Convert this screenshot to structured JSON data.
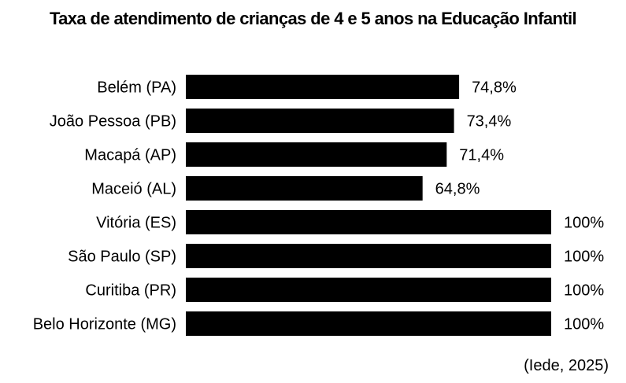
{
  "chart_data": {
    "type": "bar",
    "orientation": "horizontal",
    "title": "Taxa de atendimento de crianças de 4 e 5 anos na Educação Infantil",
    "categories": [
      "Belém (PA)",
      "João Pessoa (PB)",
      "Macapá (AP)",
      "Maceió (AL)",
      "Vitória (ES)",
      "São Paulo (SP)",
      "Curitiba (PR)",
      "Belo Horizonte (MG)"
    ],
    "values": [
      74.8,
      73.4,
      71.4,
      64.8,
      100,
      100,
      100,
      100
    ],
    "value_labels": [
      "74,8%",
      "73,4%",
      "71,4%",
      "64,8%",
      "100%",
      "100%",
      "100%",
      "100%"
    ],
    "xlabel": "",
    "ylabel": "",
    "xlim": [
      0,
      100
    ],
    "grid": false,
    "legend": "none",
    "bar_color": "#000000"
  },
  "source": "(Iede, 2025)"
}
